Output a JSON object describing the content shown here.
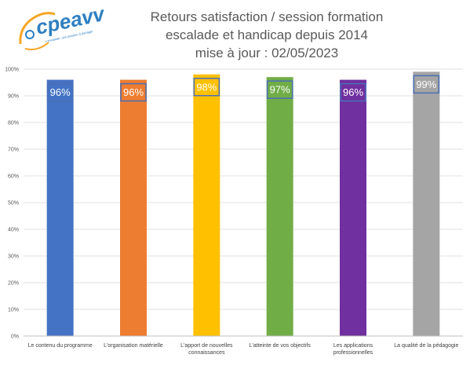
{
  "logo": {
    "text": "cpeavv",
    "tagline": "L'escalade, une passion à partager"
  },
  "chart_data": {
    "type": "bar",
    "title_lines": [
      "Retours satisfaction / session formation",
      "escalade et handicap depuis 2014",
      "mise à jour : 02/05/2023"
    ],
    "categories": [
      [
        "Le contenu du programme"
      ],
      [
        "L'organisation matérielle"
      ],
      [
        "L'apport de nouvelles",
        "connaissances"
      ],
      [
        "L'atteinte de vos objectifs"
      ],
      [
        "Les applications",
        "professionnelles"
      ],
      [
        "La qualité de la pédagogie"
      ]
    ],
    "values": [
      96,
      96,
      98,
      97,
      96,
      99
    ],
    "data_labels": [
      "96%",
      "96%",
      "98%",
      "97%",
      "96%",
      "99%"
    ],
    "colors": [
      "#4472C4",
      "#ED7D31",
      "#FFC000",
      "#70AD47",
      "#7030A0",
      "#A5A5A5"
    ],
    "label_colors": [
      "#ffffff",
      "#ffffff",
      "#ffffff",
      "#ffffff",
      "#ffffff",
      "#ffffff"
    ],
    "y_ticks": [
      "0%",
      "10%",
      "20%",
      "30%",
      "40%",
      "50%",
      "60%",
      "70%",
      "80%",
      "90%",
      "100%"
    ],
    "ylim": [
      0,
      100
    ],
    "grid": true,
    "legend": "none"
  }
}
